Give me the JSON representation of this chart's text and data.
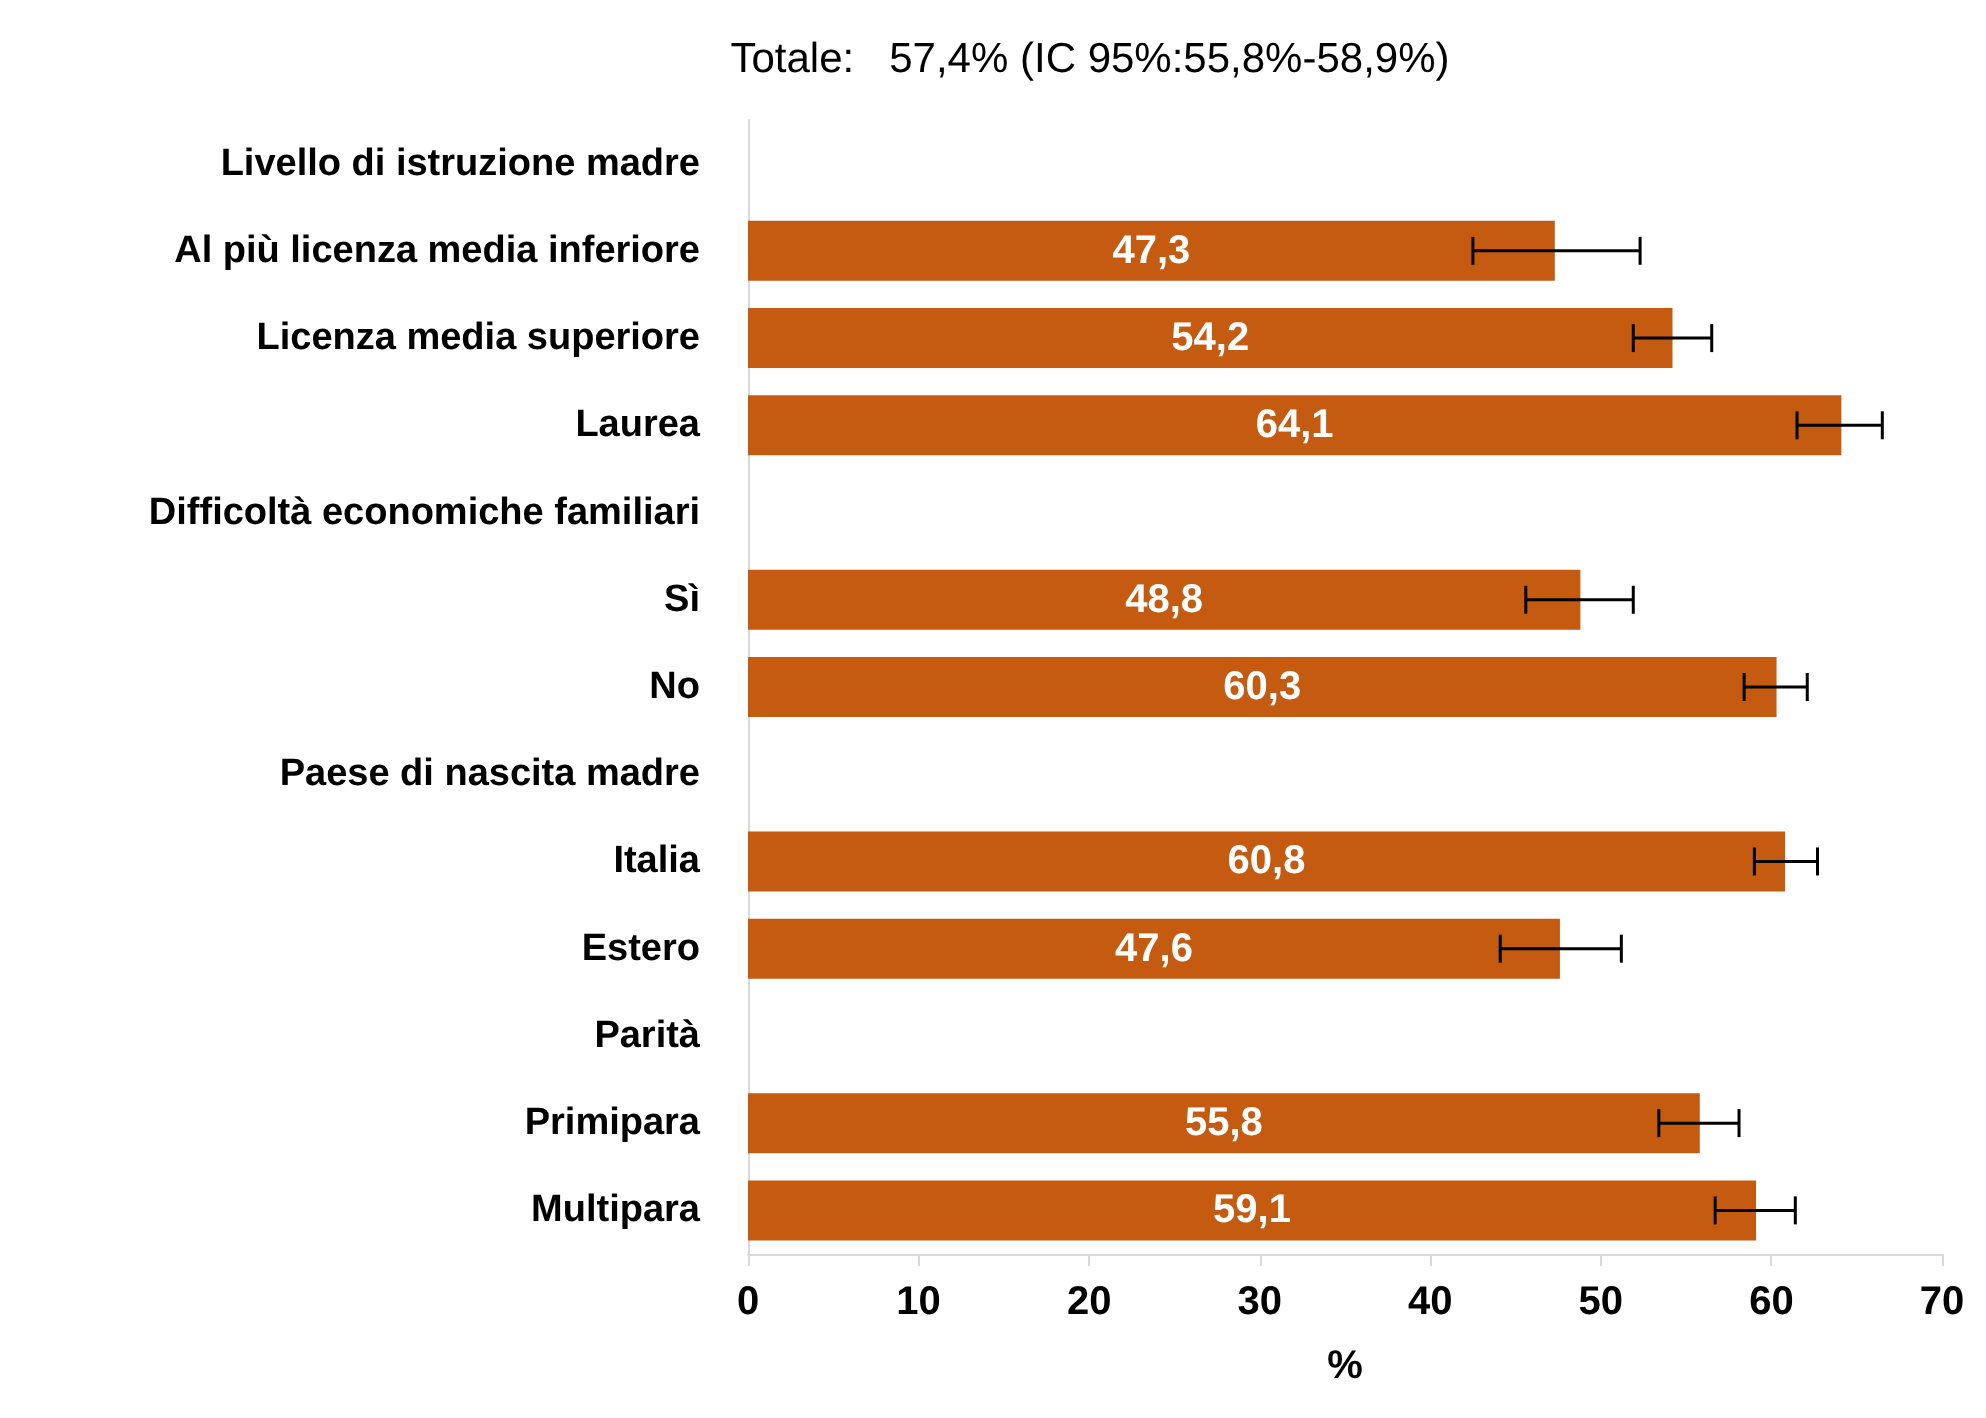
{
  "chart_data": {
    "type": "bar",
    "orientation": "horizontal",
    "title": "Totale:   57,4% (IC 95%:55,8%-58,9%)",
    "xlabel": "%",
    "categories": [
      "Livello di istruzione madre",
      "Al più licenza media inferiore",
      "Licenza media superiore",
      "Laurea",
      "Difficoltà economiche familiari",
      "Sì",
      "No",
      "Paese di nascita madre",
      "Italia",
      "Estero",
      "Parità",
      "Primipara",
      "Multipara"
    ],
    "values": [
      null,
      47.3,
      54.2,
      64.1,
      null,
      48.8,
      60.3,
      null,
      60.8,
      47.6,
      null,
      55.8,
      59.1
    ],
    "value_labels": [
      null,
      "47,3",
      "54,2",
      "64,1",
      null,
      "48,8",
      "60,3",
      null,
      "60,8",
      "47,6",
      null,
      "55,8",
      "59,1"
    ],
    "errors": [
      null,
      [
        42.5,
        52.3
      ],
      [
        51.9,
        56.5
      ],
      [
        61.5,
        66.5
      ],
      null,
      [
        45.6,
        51.9
      ],
      [
        58.4,
        62.1
      ],
      null,
      [
        59.0,
        62.7
      ],
      [
        44.1,
        51.2
      ],
      null,
      [
        53.4,
        58.1
      ],
      [
        56.7,
        61.4
      ]
    ],
    "color": "#c55a11",
    "xlim": [
      0,
      70
    ],
    "xticks": [
      0,
      10,
      20,
      30,
      40,
      50,
      60,
      70
    ],
    "grid": false
  }
}
